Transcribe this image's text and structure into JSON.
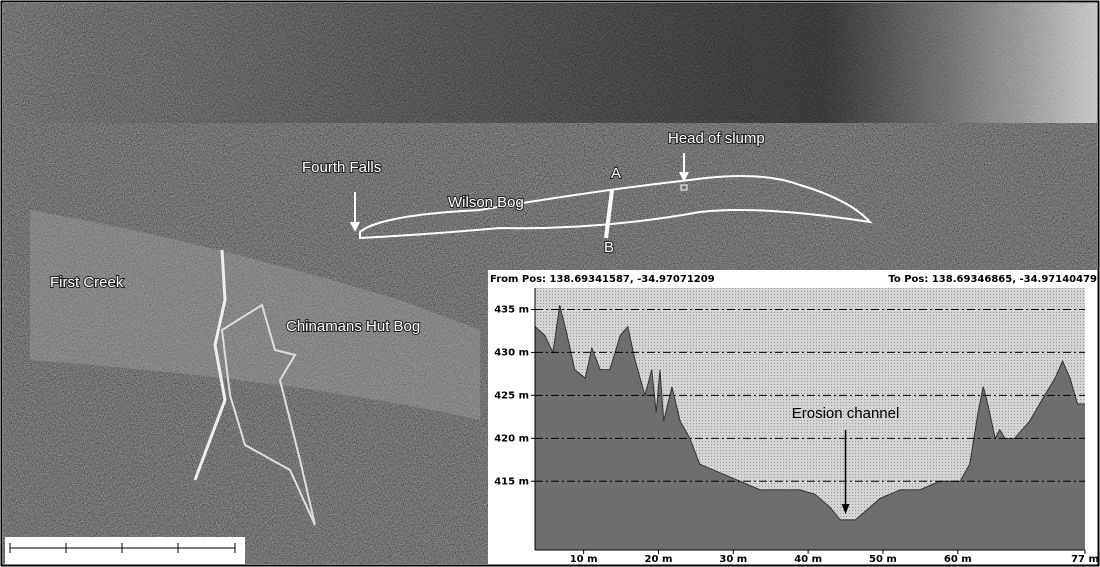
{
  "map": {
    "labels": {
      "fourth_falls": "Fourth Falls",
      "wilson_bog": "Wilson Bog",
      "a": "A",
      "b": "B",
      "head_of_slump": "Head of slump",
      "first_creek": "First Creek",
      "chinamans_hut_bog": "Chinamans Hut Bog"
    }
  },
  "chart_data": {
    "type": "area",
    "from_pos": "From Pos: 138.69341587, -34.97071209",
    "to_pos": "To Pos: 138.69346865, -34.97140479",
    "annotation": "Erosion channel",
    "annotation_x": 45,
    "x": [
      3.5,
      4.8,
      5.9,
      6.8,
      7.8,
      8.8,
      10.2,
      11.1,
      12.2,
      13.5,
      14.9,
      15.9,
      16.9,
      18.2,
      19.1,
      19.7,
      20.2,
      20.7,
      21.8,
      22.9,
      24.2,
      25.5,
      28.2,
      30.9,
      33.6,
      36.2,
      38.9,
      40.9,
      42.9,
      44.3,
      46.3,
      48.3,
      49.6,
      52.3,
      54.9,
      57.6,
      60.3,
      61.6,
      62.7,
      63.4,
      64.0,
      65.0,
      65.6,
      66.3,
      67.6,
      69.6,
      71.6,
      73.0,
      74.0,
      75.0,
      76.0,
      77.0
    ],
    "values": [
      433,
      432,
      430,
      435.5,
      432,
      428,
      427,
      430.5,
      428,
      428,
      432,
      433,
      429,
      425,
      428,
      423,
      428,
      422,
      426,
      422,
      420,
      417,
      416,
      415,
      414,
      414,
      414,
      413.5,
      412,
      410.5,
      410.5,
      412,
      413,
      414,
      414,
      415,
      415,
      417,
      423,
      426,
      424,
      420,
      421,
      420,
      420,
      422,
      425,
      427,
      429,
      427,
      424,
      424
    ],
    "color": "#6e6e6e",
    "xlim": [
      3.5,
      77
    ],
    "ylim": [
      407,
      437.5
    ],
    "xticks": [
      {
        "value": 10,
        "label": "10 m"
      },
      {
        "value": 20,
        "label": "20 m"
      },
      {
        "value": 30,
        "label": "30 m"
      },
      {
        "value": 40,
        "label": "40 m"
      },
      {
        "value": 50,
        "label": "50 m"
      },
      {
        "value": 60,
        "label": "60 m"
      },
      {
        "value": 77,
        "label": "77 m"
      }
    ],
    "yticks": [
      {
        "value": 415,
        "label": "415 m"
      },
      {
        "value": 420,
        "label": "420 m"
      },
      {
        "value": 425,
        "label": "425 m"
      },
      {
        "value": 430,
        "label": "430 m"
      },
      {
        "value": 435,
        "label": "435 m"
      }
    ],
    "grid": true
  }
}
